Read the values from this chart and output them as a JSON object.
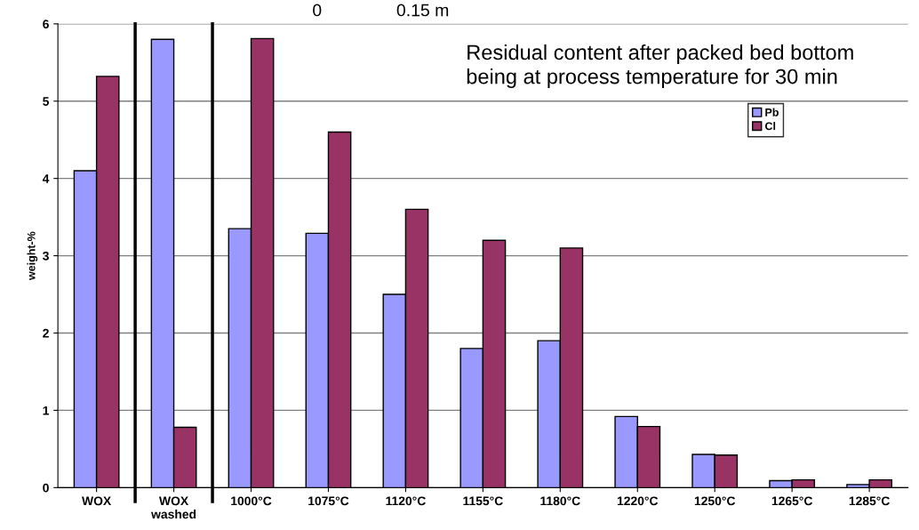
{
  "chart_data": {
    "type": "bar",
    "ylabel": "weight-%",
    "categories": [
      "WOX",
      "WOX\nwashed",
      "1000°C",
      "1075°C",
      "1120°C",
      "1155°C",
      "1180°C",
      "1220°C",
      "1250°C",
      "1265°C",
      "1285°C"
    ],
    "series": [
      {
        "name": "Pb",
        "color": "#9999ff",
        "values": [
          4.1,
          5.8,
          3.35,
          3.29,
          2.5,
          1.8,
          1.9,
          0.92,
          0.43,
          0.09,
          0.04
        ]
      },
      {
        "name": "Cl",
        "color": "#993366",
        "values": [
          5.32,
          0.78,
          5.81,
          4.6,
          3.6,
          3.2,
          3.1,
          0.79,
          0.42,
          0.1,
          0.1
        ]
      }
    ],
    "ylim": [
      0,
      6
    ],
    "yticks": [
      0,
      1,
      2,
      3,
      4,
      5,
      6
    ],
    "grid": "y",
    "legend": "top right",
    "annotations": [
      "0",
      "0.15 m",
      "Residual content after packed bed bottom\nbeing at process temperature for 30 min"
    ]
  }
}
